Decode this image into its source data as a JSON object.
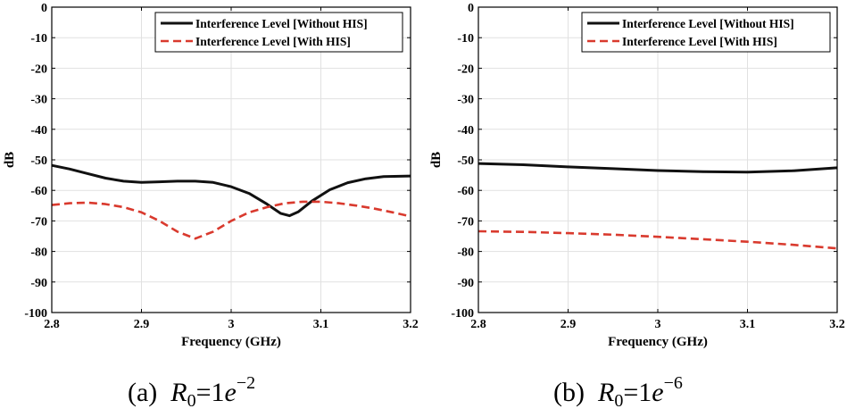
{
  "chart_data": [
    {
      "type": "line",
      "xlabel": "Frequency (GHz)",
      "ylabel": "dB",
      "xlim": [
        2.8,
        3.2
      ],
      "ylim": [
        -100,
        0
      ],
      "xticks": [
        2.8,
        2.9,
        3.0,
        3.1,
        3.2
      ],
      "xtick_labels": [
        "2.8",
        "2.9",
        "3",
        "3.1",
        "3.2"
      ],
      "yticks": [
        0,
        -10,
        -20,
        -30,
        -40,
        -50,
        -60,
        -70,
        -80,
        -90,
        -100
      ],
      "ytick_labels": [
        "0",
        "-10",
        "-20",
        "-30",
        "-40",
        "-50",
        "-60",
        "-70",
        "-80",
        "-90",
        "-100"
      ],
      "grid": true,
      "legend_position": "top-right",
      "caption": {
        "prefix": "(a)",
        "symbol": "R",
        "subscript": "0",
        "equals": "=1",
        "base": "e",
        "exponent": "−2"
      },
      "series": [
        {
          "name": "Interference Level [Without HIS]",
          "color": "#111111",
          "style": "solid",
          "x": [
            2.8,
            2.82,
            2.84,
            2.86,
            2.88,
            2.9,
            2.92,
            2.94,
            2.96,
            2.98,
            3.0,
            3.02,
            3.04,
            3.055,
            3.065,
            3.075,
            3.09,
            3.11,
            3.13,
            3.15,
            3.17,
            3.2
          ],
          "y": [
            -51.8,
            -53.0,
            -54.5,
            -56.0,
            -57.0,
            -57.4,
            -57.2,
            -57.0,
            -57.0,
            -57.4,
            -58.8,
            -61.0,
            -64.5,
            -67.5,
            -68.3,
            -67.0,
            -63.5,
            -59.8,
            -57.5,
            -56.2,
            -55.5,
            -55.3
          ]
        },
        {
          "name": "Interference Level [With HIS]",
          "color": "#d93a2e",
          "style": "dashed",
          "x": [
            2.8,
            2.82,
            2.84,
            2.86,
            2.88,
            2.9,
            2.92,
            2.94,
            2.96,
            2.98,
            3.0,
            3.02,
            3.04,
            3.06,
            3.08,
            3.1,
            3.12,
            3.14,
            3.16,
            3.18,
            3.2
          ],
          "y": [
            -64.8,
            -64.2,
            -64.0,
            -64.5,
            -65.5,
            -67.2,
            -70.0,
            -73.5,
            -75.8,
            -73.5,
            -70.0,
            -67.2,
            -65.5,
            -64.2,
            -63.7,
            -63.7,
            -64.2,
            -65.0,
            -66.0,
            -67.2,
            -68.5
          ]
        }
      ]
    },
    {
      "type": "line",
      "xlabel": "Frequency (GHz)",
      "ylabel": "dB",
      "xlim": [
        2.8,
        3.2
      ],
      "ylim": [
        -100,
        0
      ],
      "xticks": [
        2.8,
        2.9,
        3.0,
        3.1,
        3.2
      ],
      "xtick_labels": [
        "2.8",
        "2.9",
        "3",
        "3.1",
        "3.2"
      ],
      "yticks": [
        0,
        -10,
        -20,
        -30,
        -40,
        -50,
        -60,
        -70,
        -80,
        -90,
        -100
      ],
      "ytick_labels": [
        "0",
        "-10",
        "-20",
        "-30",
        "-40",
        "-50",
        "-60",
        "-70",
        "-80",
        "-90",
        "-100"
      ],
      "grid": true,
      "legend_position": "top-right",
      "caption": {
        "prefix": "(b)",
        "symbol": "R",
        "subscript": "0",
        "equals": "=1",
        "base": "e",
        "exponent": "−6"
      },
      "series": [
        {
          "name": "Interference Level [Without HIS]",
          "color": "#111111",
          "style": "solid",
          "x": [
            2.8,
            2.85,
            2.9,
            2.95,
            3.0,
            3.05,
            3.1,
            3.15,
            3.2
          ],
          "y": [
            -51.2,
            -51.6,
            -52.3,
            -52.9,
            -53.5,
            -53.9,
            -54.0,
            -53.6,
            -52.6
          ]
        },
        {
          "name": "Interference Level [With HIS]",
          "color": "#d93a2e",
          "style": "dashed",
          "x": [
            2.8,
            2.85,
            2.9,
            2.95,
            3.0,
            3.05,
            3.1,
            3.15,
            3.2
          ],
          "y": [
            -73.4,
            -73.6,
            -74.0,
            -74.5,
            -75.2,
            -76.0,
            -76.8,
            -77.8,
            -79.0
          ]
        }
      ]
    }
  ]
}
